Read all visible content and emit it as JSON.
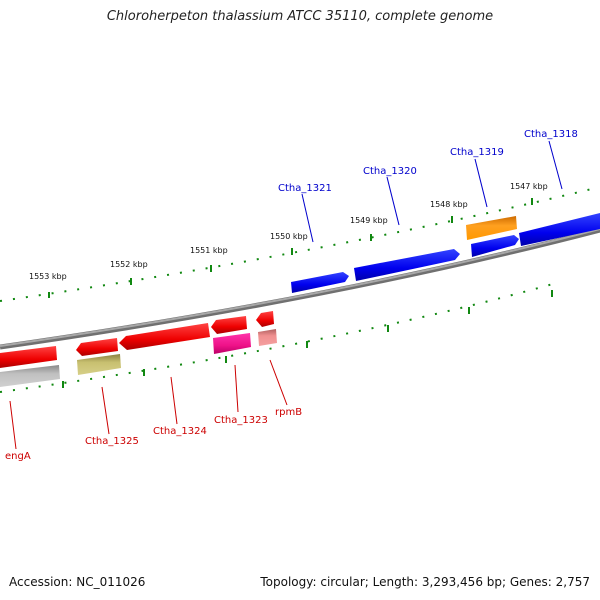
{
  "title": "Chloroherpeton thalassium ATCC 35110, complete genome",
  "footer": {
    "accession": "Accession: NC_011026",
    "topology": "Topology: circular; Length: 3,293,456 bp; Genes: 2,757"
  },
  "colors": {
    "backbone": "#8a8a8a",
    "tick": "#118811",
    "forward_gene": "#0000ee",
    "reverse_gene": "#ee0000",
    "forward_label": "#0000cc",
    "reverse_label": "#cc0000"
  },
  "kbp_labels": [
    "1547 kbp",
    "1548 kbp",
    "1549 kbp",
    "1550 kbp",
    "1551 kbp",
    "1552 kbp",
    "1553 kbp"
  ],
  "forward_labels": [
    "Ctha_1318",
    "Ctha_1319",
    "Ctha_1320",
    "Ctha_1321"
  ],
  "reverse_labels": [
    "engA",
    "Ctha_1325",
    "Ctha_1324",
    "Ctha_1323",
    "rpmB"
  ]
}
